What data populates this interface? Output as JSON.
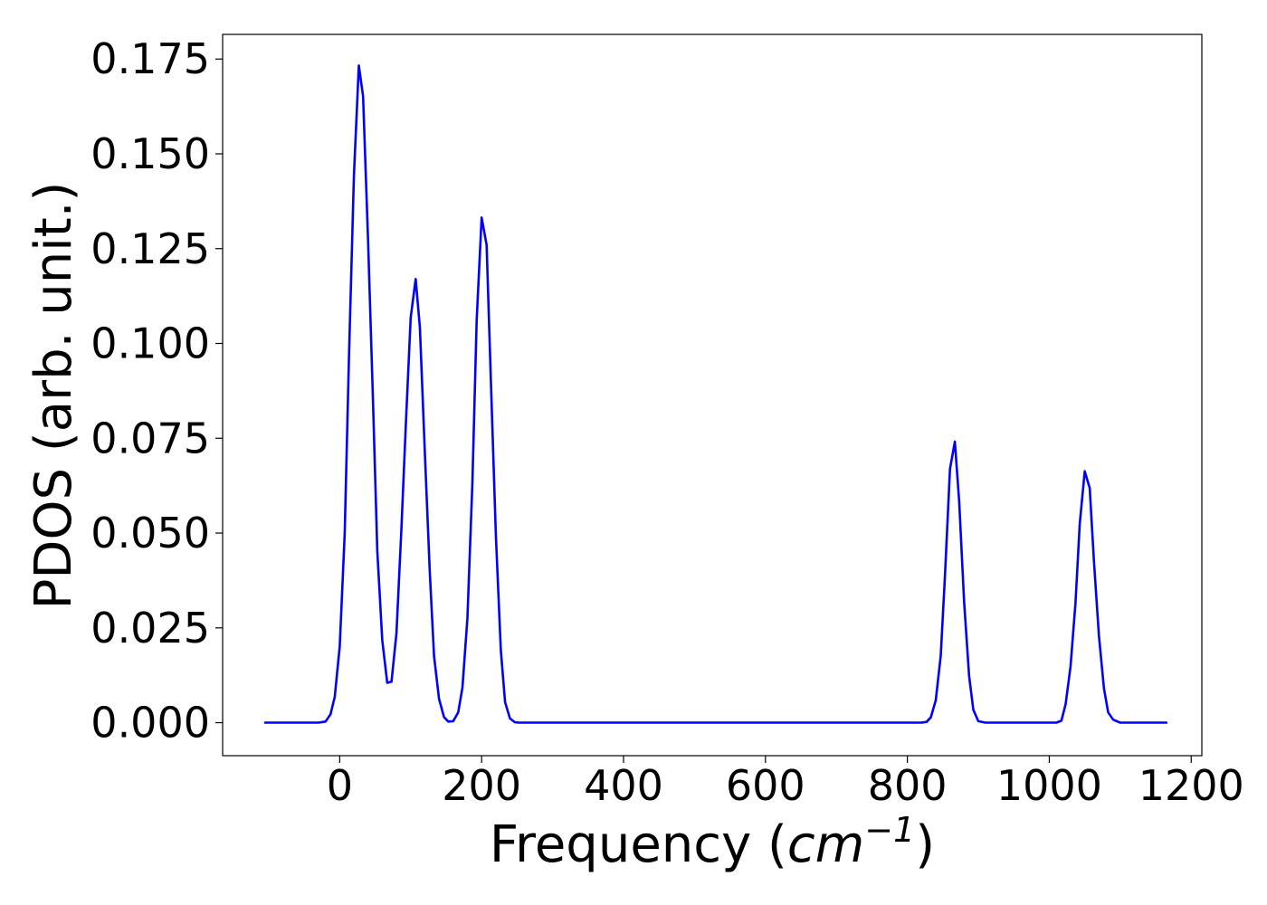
{
  "chart_data": {
    "type": "line",
    "title": "",
    "xlabel": {
      "prefix": "Frequency (",
      "unit_base": "cm",
      "unit_exponent": "−1",
      "suffix": ")"
    },
    "ylabel": "PDOS (arb. unit.)",
    "xlim": [
      -165,
      1215
    ],
    "ylim": [
      -0.0087,
      0.1815
    ],
    "x_ticks": [
      0,
      200,
      400,
      600,
      800,
      1000,
      1200
    ],
    "x_tick_labels": [
      "0",
      "200",
      "400",
      "600",
      "800",
      "1000",
      "1200"
    ],
    "y_ticks": [
      0.0,
      0.025,
      0.05,
      0.075,
      0.1,
      0.125,
      0.15,
      0.175
    ],
    "y_tick_labels": [
      "0.000",
      "0.025",
      "0.050",
      "0.075",
      "0.100",
      "0.125",
      "0.150",
      "0.175"
    ],
    "grid": false,
    "legend": "none",
    "series": [
      {
        "color": "#0000ff",
        "x": [
          -105,
          -30,
          -20,
          -13,
          -7,
          0,
          7,
          13,
          20,
          27,
          33,
          40,
          47,
          53,
          60,
          67,
          73,
          80,
          87,
          93,
          100,
          107,
          113,
          120,
          127,
          133,
          140,
          147,
          153,
          160,
          167,
          173,
          180,
          187,
          193,
          200,
          207,
          213,
          220,
          227,
          233,
          240,
          247,
          253,
          260,
          300,
          400,
          500,
          600,
          700,
          800,
          820,
          827,
          833,
          840,
          847,
          853,
          860,
          867,
          873,
          880,
          887,
          893,
          900,
          910,
          1000,
          1010,
          1017,
          1023,
          1030,
          1037,
          1043,
          1050,
          1057,
          1063,
          1070,
          1077,
          1083,
          1090,
          1100,
          1165
        ],
        "y": [
          0.0,
          0.0,
          0.0003,
          0.0022,
          0.0068,
          0.0201,
          0.0499,
          0.0964,
          0.1444,
          0.1733,
          0.1652,
          0.1272,
          0.0845,
          0.0453,
          0.0217,
          0.0105,
          0.0108,
          0.0237,
          0.0514,
          0.0779,
          0.1068,
          0.117,
          0.1041,
          0.0709,
          0.0398,
          0.0176,
          0.0063,
          0.0015,
          0.0003,
          0.0004,
          0.0027,
          0.0093,
          0.0276,
          0.0634,
          0.1061,
          0.1332,
          0.126,
          0.0902,
          0.0496,
          0.0191,
          0.0054,
          0.0011,
          0.0001,
          0.0,
          0.0,
          0.0,
          0.0,
          0.0,
          0.0,
          0.0,
          0.0,
          0.0,
          0.0002,
          0.0014,
          0.0059,
          0.0177,
          0.0389,
          0.0669,
          0.0741,
          0.0582,
          0.032,
          0.0124,
          0.0034,
          0.0004,
          0.0,
          0.0,
          0.0,
          0.0005,
          0.0049,
          0.0148,
          0.0316,
          0.0525,
          0.0663,
          0.0619,
          0.0425,
          0.0229,
          0.0091,
          0.0027,
          0.0008,
          0.0,
          0.0
        ]
      }
    ]
  }
}
